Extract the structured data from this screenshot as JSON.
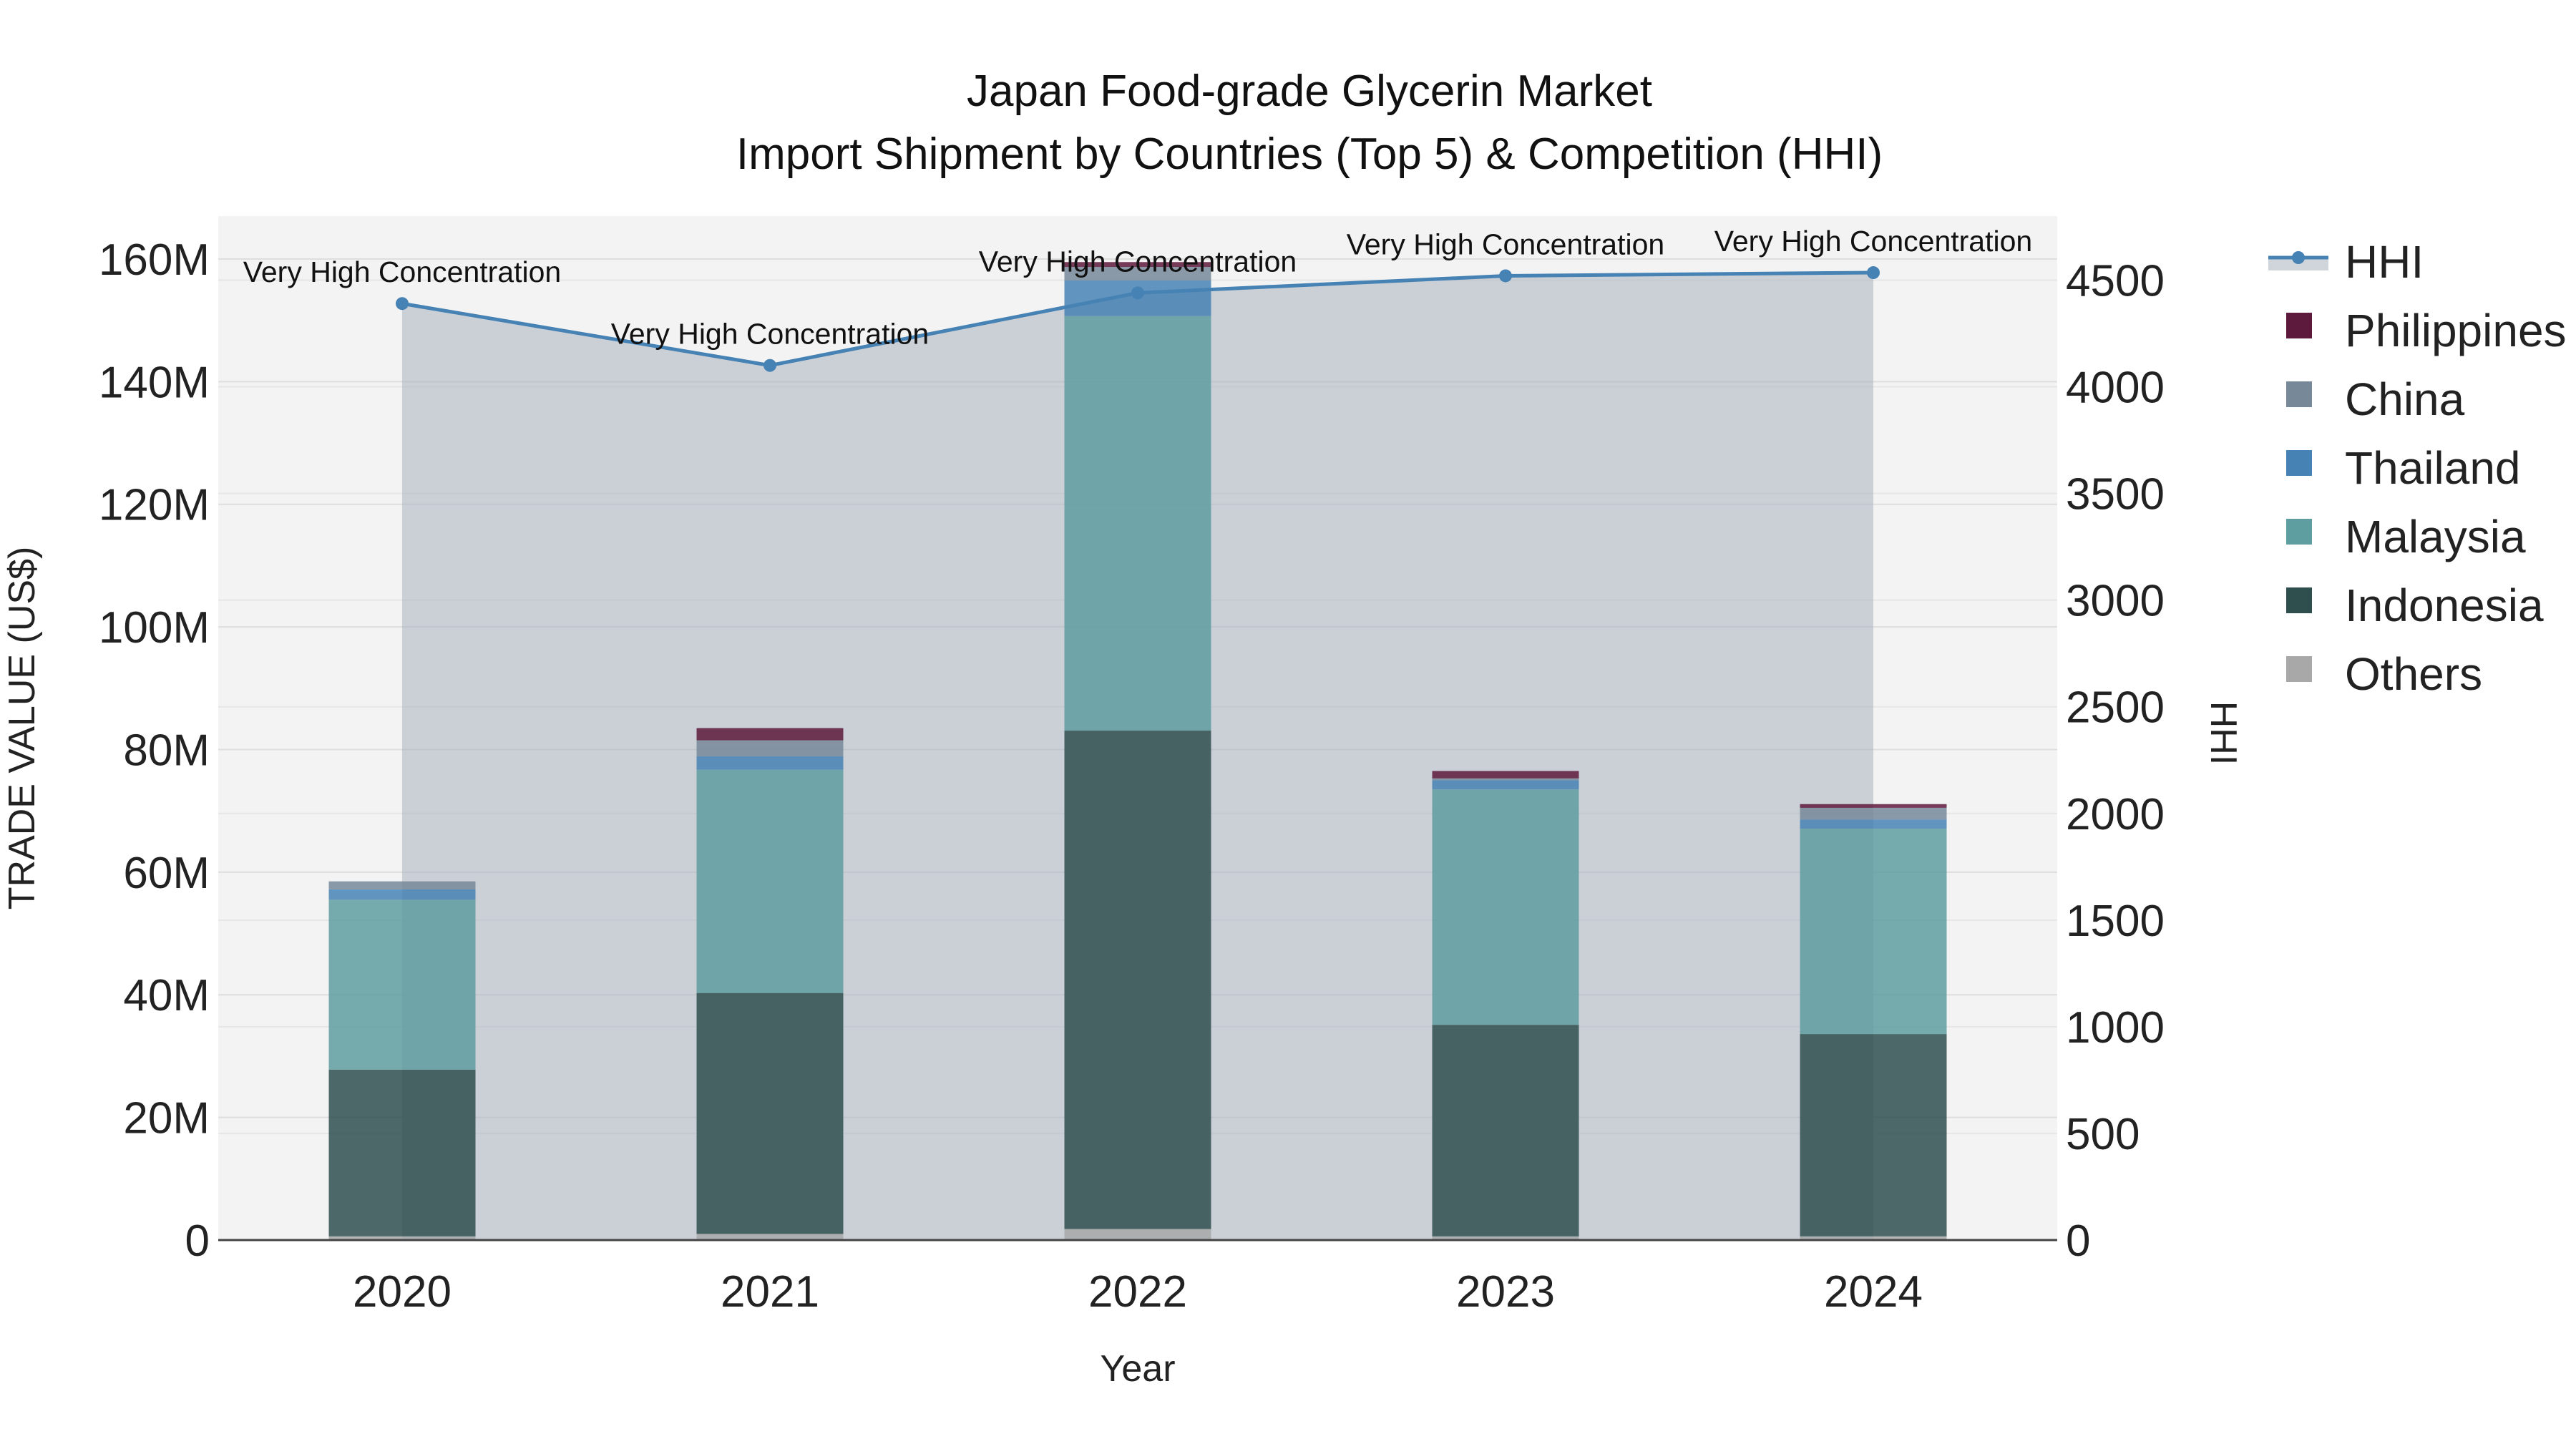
{
  "chart_data": {
    "type": "bar",
    "title_lines": [
      "Japan Food-grade Glycerin Market",
      "Import Shipment by Countries (Top 5) & Competition (HHI)"
    ],
    "xlabel": "Year",
    "ylabel": "TRADE VALUE (US$)",
    "y2label": "HHI",
    "categories": [
      "2020",
      "2021",
      "2022",
      "2023",
      "2024"
    ],
    "ylim": [
      0,
      167000000
    ],
    "y_ticks": [
      0,
      20000000,
      40000000,
      60000000,
      80000000,
      100000000,
      120000000,
      140000000,
      160000000
    ],
    "y_tick_labels": [
      "0",
      "20M",
      "40M",
      "60M",
      "80M",
      "100M",
      "120M",
      "140M",
      "160M"
    ],
    "y2lim": [
      0,
      4800
    ],
    "y2_ticks": [
      0,
      500,
      1000,
      1500,
      2000,
      2500,
      3000,
      3500,
      4000,
      4500
    ],
    "y2_tick_labels": [
      "0",
      "500",
      "1000",
      "1500",
      "2000",
      "2500",
      "3000",
      "3500",
      "4000",
      "4500"
    ],
    "series": [
      {
        "name": "Others",
        "color": "#a8a8a8",
        "values": [
          600000,
          1000000,
          1800000,
          600000,
          600000
        ]
      },
      {
        "name": "Indonesia",
        "color": "#2f4f4f",
        "values": [
          27200000,
          39300000,
          81300000,
          34500000,
          33000000
        ]
      },
      {
        "name": "Malaysia",
        "color": "#5f9ea0",
        "values": [
          27700000,
          36400000,
          67600000,
          38400000,
          33500000
        ]
      },
      {
        "name": "Thailand",
        "color": "#4682b4",
        "values": [
          1700000,
          2200000,
          5800000,
          1500000,
          1500000
        ]
      },
      {
        "name": "China",
        "color": "#778899",
        "values": [
          1300000,
          2600000,
          2200000,
          300000,
          1900000
        ]
      },
      {
        "name": "Philippines",
        "color": "#5e1a3c",
        "values": [
          0,
          2000000,
          800000,
          1200000,
          600000
        ]
      }
    ],
    "hhi": {
      "name": "HHI",
      "color": "#4682b4",
      "values": [
        4390,
        4100,
        4440,
        4520,
        4535
      ],
      "annotations": [
        "Very High Concentration",
        "Very High Concentration",
        "Very High Concentration",
        "Very High Concentration",
        "Very High Concentration"
      ]
    },
    "legend": [
      "HHI",
      "Philippines",
      "China",
      "Thailand",
      "Malaysia",
      "Indonesia",
      "Others"
    ],
    "legend_placement": "right",
    "grid": true
  }
}
